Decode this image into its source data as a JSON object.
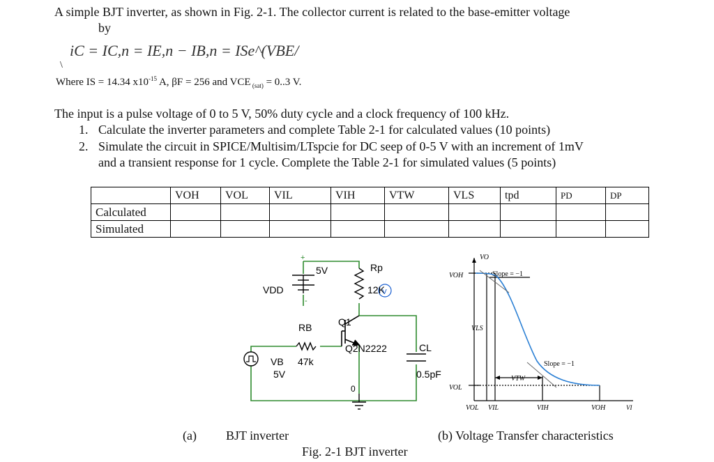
{
  "problem": {
    "intro_line1": "A simple BJT inverter, as shown in Fig. 2-1.  The collector current is related to the base-emitter voltage",
    "intro_line2": "by",
    "equation": "iC = IC,n = IE,n − IB,n = ISe^(VBE/VT)",
    "stray_mark": "\\",
    "params_prefix": "Where  IS = 14.34 x10",
    "params_exp": "-15",
    "params_mid": " A, βF = 256 and VCE",
    "params_sub": " (sat)",
    "params_end": " = 0..3 V.",
    "input_desc": "The input is a pulse voltage of 0 to 5 V, 50% duty cycle and a clock frequency of 100 kHz.",
    "tasks": [
      {
        "num": "1.",
        "text": "Calculate the inverter parameters and complete Table 2-1 for calculated values  (10 points)"
      },
      {
        "num": "2.",
        "text": "Simulate the circuit in SPICE/Multisim/LTspcie for DC seep of 0-5 V with an increment of 1mV",
        "text2": "and a transient response for 1 cycle. Complete the Table 2-1 for simulated values  (5 points)"
      }
    ]
  },
  "table": {
    "columns": [
      "",
      "VOH",
      "VOL",
      "VIL",
      "VIH",
      "VTW",
      "VLS",
      "tpd",
      "PD",
      "DP"
    ],
    "rows": [
      {
        "label": "Calculated"
      },
      {
        "label": "Simulated"
      }
    ]
  },
  "circuit": {
    "vdd_label": "VDD",
    "vdd_value": "5V",
    "plus": "+",
    "minus": "-",
    "rp_label": "Rp",
    "rp_value": "12K",
    "rp_marker": "V",
    "q_label": "Q1",
    "q_model": "Q2N2222",
    "rb_label": "RB",
    "rb_value": "47k",
    "vb_label": "VB",
    "vb_value": "5V",
    "cl_label": "CL",
    "cl_value": "0.5pF",
    "ground_label": "0"
  },
  "vtc": {
    "y_axis": "VO",
    "voh": "VOH",
    "vol": "VOL",
    "vls": "VLS",
    "vtw": "VTW",
    "slope1": "Slope = −1",
    "slope2": "Slope = −1",
    "x_ticks": [
      "VOL",
      "VIL",
      "VIH",
      "VOH"
    ],
    "x_axis": "VI"
  },
  "captions": {
    "a_letter": "(a)",
    "a_text": "BJT inverter",
    "b_text": "(b) Voltage Transfer characteristics",
    "figure": "Fig. 2-1 BJT inverter"
  }
}
